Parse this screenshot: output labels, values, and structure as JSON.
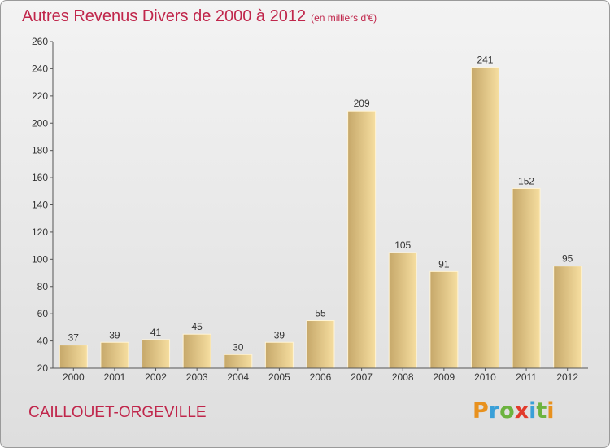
{
  "header": {
    "title": "Autres Revenus Divers de 2000 à 2012",
    "unit": "(en milliers d'€)"
  },
  "footer": {
    "commune": "CAILLOUET-ORGEVILLE",
    "logo_letters": [
      "P",
      "r",
      "o",
      "x",
      "i",
      "t",
      "i"
    ],
    "logo_colors": [
      "#e8911e",
      "#3aa0d8",
      "#6cb33f",
      "#e23a2b",
      "#3aa0d8",
      "#6cb33f",
      "#e8911e"
    ]
  },
  "chart_data": {
    "type": "bar",
    "title": "Autres Revenus Divers de 2000 à 2012",
    "xlabel": "",
    "ylabel": "",
    "categories": [
      "2000",
      "2001",
      "2002",
      "2003",
      "2004",
      "2005",
      "2006",
      "2007",
      "2008",
      "2009",
      "2010",
      "2011",
      "2012"
    ],
    "values": [
      37,
      39,
      41,
      45,
      30,
      39,
      55,
      209,
      105,
      91,
      241,
      152,
      95
    ],
    "ylim": [
      20,
      260
    ],
    "yticks": [
      20,
      40,
      60,
      80,
      100,
      120,
      140,
      160,
      180,
      200,
      220,
      240,
      260
    ],
    "grid": false,
    "colors": {
      "bar_light": "#f6dea0",
      "bar_dark": "#c6a86a",
      "axis": "#555555"
    }
  }
}
